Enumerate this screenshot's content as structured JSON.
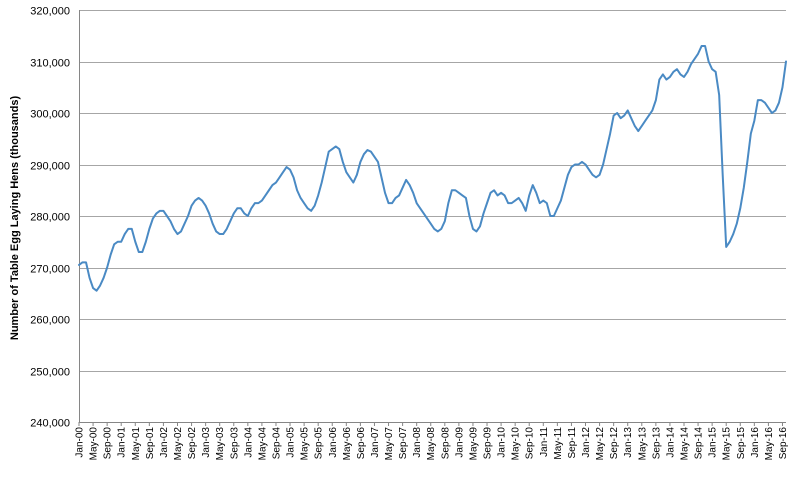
{
  "chart_data": {
    "type": "line",
    "title": "",
    "xlabel": "",
    "ylabel": "Number of Table Egg Laying Hens (thousands)",
    "ylim": [
      240000,
      320000
    ],
    "y_ticks": [
      "240,000",
      "250,000",
      "260,000",
      "270,000",
      "280,000",
      "290,000",
      "300,000",
      "310,000",
      "320,000"
    ],
    "y_tick_values": [
      240000,
      250000,
      260000,
      270000,
      280000,
      290000,
      300000,
      310000,
      320000
    ],
    "x_tick_labels": [
      "Jan-00",
      "May-00",
      "Sep-00",
      "Jan-01",
      "May-01",
      "Sep-01",
      "Jan-02",
      "May-02",
      "Sep-02",
      "Jan-03",
      "May-03",
      "Sep-03",
      "Jan-04",
      "May-04",
      "Sep-04",
      "Jan-05",
      "May-05",
      "Sep-05",
      "Jan-06",
      "May-06",
      "Sep-06",
      "Jan-07",
      "May-07",
      "Sep-07",
      "Jan-08",
      "May-08",
      "Sep-08",
      "Jan-09",
      "May-09",
      "Sep-09",
      "Jan-10",
      "May-10",
      "Sep-10",
      "Jan-11",
      "May-11",
      "Sep-11",
      "Jan-12",
      "May-12",
      "Sep-12",
      "Jan-13",
      "May-13",
      "Sep-13",
      "Jan-14",
      "May-14",
      "Sep-14",
      "Jan-15",
      "May-15",
      "Sep-15",
      "Jan-16",
      "May-16",
      "Sep-16"
    ],
    "grid": true,
    "legend": "none",
    "line_color": "#4a8ac4",
    "series": [
      {
        "values": [
          270500,
          271000,
          271000,
          268000,
          266000,
          265500,
          266500,
          268000,
          270000,
          272500,
          274500,
          275000,
          275000,
          276500,
          277500,
          277500,
          275000,
          273000,
          273000,
          275000,
          277500,
          279500,
          280500,
          281000,
          281000,
          280000,
          279000,
          277500,
          276500,
          277000,
          278500,
          280000,
          282000,
          283000,
          283500,
          283000,
          282000,
          280500,
          278500,
          277000,
          276500,
          276500,
          277500,
          279000,
          280500,
          281500,
          281500,
          280500,
          280000,
          281500,
          282500,
          282500,
          283000,
          284000,
          285000,
          286000,
          286500,
          287500,
          288500,
          289500,
          289000,
          287500,
          285000,
          283500,
          282500,
          281500,
          281000,
          282000,
          284000,
          286500,
          289500,
          292500,
          293000,
          293500,
          293000,
          290500,
          288500,
          287500,
          286500,
          288000,
          290500,
          292000,
          292800,
          292500,
          291500,
          290500,
          287500,
          284500,
          282500,
          282500,
          283500,
          284000,
          285500,
          287000,
          286000,
          284500,
          282500,
          281500,
          280500,
          279500,
          278500,
          277500,
          277000,
          277500,
          279000,
          282500,
          285000,
          285000,
          284500,
          284000,
          283500,
          280000,
          277500,
          277000,
          278000,
          280500,
          282500,
          284500,
          285000,
          284000,
          284500,
          284000,
          282500,
          282500,
          283000,
          283500,
          282500,
          281000,
          284000,
          286000,
          284500,
          282500,
          283000,
          282500,
          280000,
          280000,
          281500,
          283000,
          285500,
          288000,
          289500,
          290000,
          290000,
          290500,
          290000,
          289000,
          288000,
          287500,
          288000,
          290000,
          293000,
          296000,
          299500,
          300000,
          299000,
          299500,
          300500,
          299000,
          297500,
          296500,
          297500,
          298500,
          299500,
          300500,
          302500,
          306500,
          307500,
          306500,
          307000,
          308000,
          308500,
          307500,
          307000,
          308000,
          309500,
          310500,
          311500,
          313000,
          313000,
          310000,
          308500,
          308000,
          303500,
          288000,
          274000,
          275000,
          276500,
          278500,
          281500,
          285500,
          290500,
          296000,
          298500,
          302500,
          302500,
          302000,
          301000,
          300000,
          300500,
          302000,
          305000,
          310000
        ]
      }
    ]
  }
}
